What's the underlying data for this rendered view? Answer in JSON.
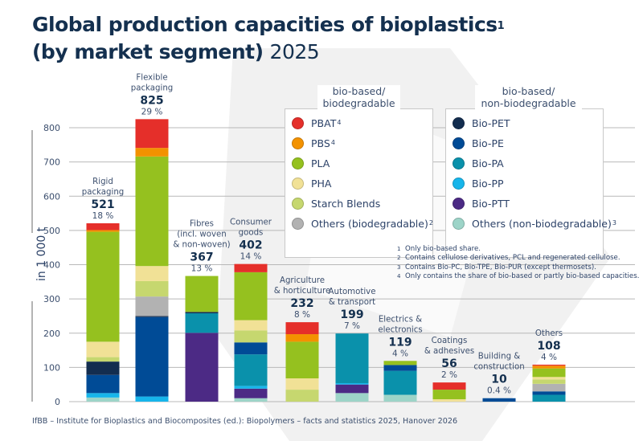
{
  "title": {
    "main": "Global production capacities of bioplastics",
    "main_sup": "1",
    "line2": "(by market segment)",
    "year": "2025"
  },
  "source": "IfBB – Institute for Bioplastics and Biocomposites (ed.): Biopolymers – facts and statistics 2025, Hanover 2026",
  "legend": {
    "groups": [
      {
        "heading_line1": "bio-based/",
        "heading_line2": "biodegradable",
        "items": [
          {
            "key": "PBAT",
            "label": "PBAT",
            "sup": "4",
            "color": "#e52f2a"
          },
          {
            "key": "PBS",
            "label": "PBS",
            "sup": "4",
            "color": "#f39200"
          },
          {
            "key": "PLA",
            "label": "PLA",
            "sup": "",
            "color": "#95c11f"
          },
          {
            "key": "PHA",
            "label": "PHA",
            "sup": "",
            "color": "#f1e196"
          },
          {
            "key": "Starch",
            "label": "Starch Blends",
            "sup": "",
            "color": "#c6d76f"
          },
          {
            "key": "OthersBio",
            "label": "Others (biodegradable)",
            "sup": "2",
            "color": "#b2b2b2"
          }
        ]
      },
      {
        "heading_line1": "bio-based/",
        "heading_line2": "non-biodegradable",
        "items": [
          {
            "key": "BioPET",
            "label": "Bio-PET",
            "sup": "",
            "color": "#132d4f"
          },
          {
            "key": "BioPE",
            "label": "Bio-PE",
            "sup": "",
            "color": "#004b96"
          },
          {
            "key": "BioPA",
            "label": "Bio-PA",
            "sup": "",
            "color": "#0a91ab"
          },
          {
            "key": "BioPP",
            "label": "Bio-PP",
            "sup": "",
            "color": "#17b5ea"
          },
          {
            "key": "BioPTT",
            "label": "Bio-PTT",
            "sup": "",
            "color": "#4c2a85"
          },
          {
            "key": "OthersNonBio",
            "label": "Others (non-biodegradable)",
            "sup": "3",
            "color": "#9dd4c8"
          }
        ]
      }
    ]
  },
  "footnotes": [
    {
      "n": "1",
      "text": "Only bio-based share."
    },
    {
      "n": "2",
      "text": "Contains cellulose derivatives, PCL and regenerated cellulose."
    },
    {
      "n": "3",
      "text": "Contains Bio-PC, Bio-TPE, Bio-PUR (except thermosets)."
    },
    {
      "n": "4",
      "text": "Only contains the share of bio-based or partly bio-based capacities."
    }
  ],
  "chart_data": {
    "type": "bar",
    "stacked": true,
    "title": "Global production capacities of bioplastics (by market segment) 2025",
    "xlabel": "",
    "ylabel": "in 1 000 t",
    "ylim": [
      0,
      800
    ],
    "yticks": [
      0,
      100,
      200,
      300,
      400,
      500,
      600,
      700,
      800
    ],
    "grid": true,
    "legend_position": "top-right",
    "categories": [
      {
        "label": [
          "Rigid",
          "packaging"
        ],
        "total": "521",
        "share": "18 %"
      },
      {
        "label": [
          "Flexible",
          "packaging"
        ],
        "total": "825",
        "share": "29 %"
      },
      {
        "label": [
          "Fibres",
          "(incl. woven",
          "& non-woven)"
        ],
        "total": "367",
        "share": "13 %"
      },
      {
        "label": [
          "Consumer",
          "goods"
        ],
        "total": "402",
        "share": "14 %"
      },
      {
        "label": [
          "Agriculture",
          "& horticulture"
        ],
        "total": "232",
        "share": "8 %"
      },
      {
        "label": [
          "Automotive",
          "& transport"
        ],
        "total": "199",
        "share": "7 %"
      },
      {
        "label": [
          "Electrics &",
          "electronics"
        ],
        "total": "119",
        "share": "4 %"
      },
      {
        "label": [
          "Coatings",
          "& adhesives"
        ],
        "total": "56",
        "share": "2 %"
      },
      {
        "label": [
          "Building &",
          "construction"
        ],
        "total": "10",
        "share": "0.4 %"
      },
      {
        "label": [
          "Others"
        ],
        "total": "108",
        "share": "4 %"
      }
    ],
    "stack_order": [
      "OthersNonBio",
      "BioPTT",
      "BioPP",
      "BioPA",
      "BioPE",
      "BioPET",
      "OthersBio",
      "Starch",
      "PHA",
      "PLA",
      "PBS",
      "PBAT"
    ],
    "series": [
      {
        "name": "OthersNonBio",
        "values": [
          12,
          0,
          0,
          10,
          0,
          25,
          20,
          0,
          0,
          0
        ]
      },
      {
        "name": "BioPTT",
        "values": [
          0,
          0,
          201,
          28,
          0,
          25,
          0,
          0,
          0,
          0
        ]
      },
      {
        "name": "BioPP",
        "values": [
          13,
          15,
          0,
          8,
          0,
          4,
          0,
          0,
          0,
          0
        ]
      },
      {
        "name": "BioPA",
        "values": [
          0,
          0,
          57,
          92,
          0,
          145,
          70,
          0,
          0,
          20
        ]
      },
      {
        "name": "BioPE",
        "values": [
          53,
          232,
          0,
          35,
          0,
          0,
          17,
          0,
          10,
          10
        ]
      },
      {
        "name": "BioPET",
        "values": [
          39,
          3,
          4,
          0,
          0,
          0,
          0,
          0,
          0,
          0
        ]
      },
      {
        "name": "OthersBio",
        "values": [
          0,
          57,
          0,
          0,
          0,
          0,
          0,
          0,
          0,
          22
        ]
      },
      {
        "name": "Starch",
        "values": [
          13,
          45,
          0,
          35,
          35,
          0,
          0,
          0,
          0,
          13
        ]
      },
      {
        "name": "PHA",
        "values": [
          45,
          44,
          0,
          30,
          33,
          0,
          0,
          7,
          0,
          7
        ]
      },
      {
        "name": "PLA",
        "values": [
          321,
          320,
          105,
          140,
          107,
          0,
          12,
          28,
          0,
          25
        ]
      },
      {
        "name": "PBS",
        "values": [
          5,
          25,
          0,
          0,
          22,
          0,
          0,
          0,
          0,
          8
        ]
      },
      {
        "name": "PBAT",
        "values": [
          20,
          84,
          0,
          24,
          35,
          0,
          0,
          21,
          0,
          3
        ]
      }
    ]
  }
}
